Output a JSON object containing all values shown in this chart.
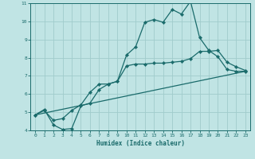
{
  "xlabel": "Humidex (Indice chaleur)",
  "xlim": [
    -0.5,
    23.5
  ],
  "ylim": [
    4,
    11
  ],
  "xticks": [
    0,
    1,
    2,
    3,
    4,
    5,
    6,
    7,
    8,
    9,
    10,
    11,
    12,
    13,
    14,
    15,
    16,
    17,
    18,
    19,
    20,
    21,
    22,
    23
  ],
  "yticks": [
    4,
    5,
    6,
    7,
    8,
    9,
    10,
    11
  ],
  "background_color": "#c0e4e4",
  "grid_color": "#a0cccc",
  "line_color": "#1a6b6b",
  "line1_x": [
    0,
    1,
    2,
    3,
    4,
    5,
    6,
    7,
    8,
    9,
    10,
    11,
    12,
    13,
    14,
    15,
    16,
    17,
    18,
    19,
    20,
    21,
    22,
    23
  ],
  "line1_y": [
    4.85,
    5.15,
    4.3,
    4.05,
    4.1,
    5.35,
    5.5,
    6.25,
    6.55,
    6.7,
    8.15,
    8.6,
    9.95,
    10.1,
    9.95,
    10.65,
    10.4,
    11.1,
    9.1,
    8.4,
    8.05,
    7.35,
    7.25,
    7.25
  ],
  "line2_x": [
    0,
    1,
    2,
    3,
    4,
    5,
    6,
    7,
    8,
    9,
    10,
    11,
    12,
    13,
    14,
    15,
    16,
    17,
    18,
    19,
    20,
    21,
    22,
    23
  ],
  "line2_y": [
    4.85,
    5.1,
    4.55,
    4.65,
    5.1,
    5.4,
    6.1,
    6.55,
    6.55,
    6.7,
    7.55,
    7.65,
    7.65,
    7.7,
    7.7,
    7.75,
    7.8,
    7.95,
    8.35,
    8.35,
    8.4,
    7.75,
    7.5,
    7.3
  ],
  "line3_x": [
    0,
    23
  ],
  "line3_y": [
    4.85,
    7.25
  ]
}
